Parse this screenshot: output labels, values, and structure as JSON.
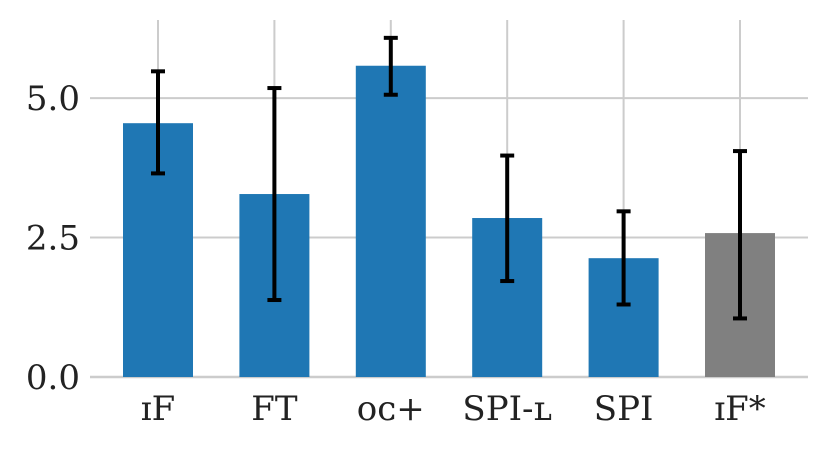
{
  "chart_data": {
    "type": "bar",
    "title": "",
    "xlabel": "",
    "ylabel": "",
    "categories": [
      "ɪF",
      "FT",
      "ᴏᴄ+",
      "SPI-ʟ",
      "SPI",
      "ɪF*"
    ],
    "values": [
      4.55,
      3.28,
      5.58,
      2.85,
      2.13,
      2.58
    ],
    "error_low": [
      3.65,
      1.38,
      5.06,
      1.72,
      1.3,
      1.05
    ],
    "error_high": [
      5.48,
      5.18,
      6.08,
      3.97,
      2.97,
      4.05
    ],
    "colors": [
      "#1f77b4",
      "#1f77b4",
      "#1f77b4",
      "#1f77b4",
      "#1f77b4",
      "#808080"
    ],
    "ylim": [
      0,
      6.4
    ],
    "yticks": [
      0.0,
      2.5,
      5.0
    ],
    "ytick_labels": [
      "0.0",
      "2.5",
      "5.0"
    ],
    "grid": true,
    "error_color": "#000000",
    "grid_color": "#cccccc"
  }
}
